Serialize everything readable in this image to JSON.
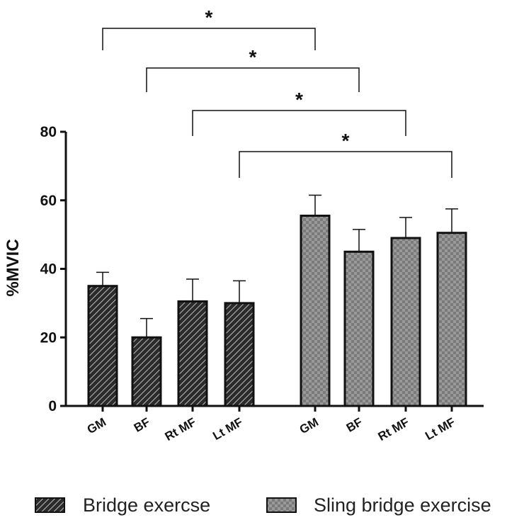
{
  "chart_data": {
    "type": "bar",
    "ylabel": "%MVIC",
    "ylim": [
      0,
      80
    ],
    "yticks": [
      0,
      20,
      40,
      60,
      80
    ],
    "categories": [
      "GM",
      "BF",
      "Rt MF",
      "Lt MF"
    ],
    "series": [
      {
        "name": "Bridge exercse",
        "values": [
          35,
          20,
          30.5,
          30
        ],
        "errors": [
          4,
          5.5,
          6.5,
          6.5
        ],
        "pattern": "diagonal-hatch"
      },
      {
        "name": "Sling bridge exercise",
        "values": [
          55.5,
          45,
          49,
          50.5
        ],
        "errors": [
          6,
          6.5,
          6,
          7
        ],
        "pattern": "checker"
      }
    ],
    "significance": [
      {
        "from": "Bridge exercse:GM",
        "to": "Sling bridge exercise:GM",
        "label": "*"
      },
      {
        "from": "Bridge exercse:BF",
        "to": "Sling bridge exercise:BF",
        "label": "*"
      },
      {
        "from": "Bridge exercse:Rt MF",
        "to": "Sling bridge exercise:Rt MF",
        "label": "*"
      },
      {
        "from": "Bridge exercse:Lt MF",
        "to": "Sling bridge exercise:Lt MF",
        "label": "*"
      }
    ],
    "legend_position": "bottom",
    "grid": false
  }
}
